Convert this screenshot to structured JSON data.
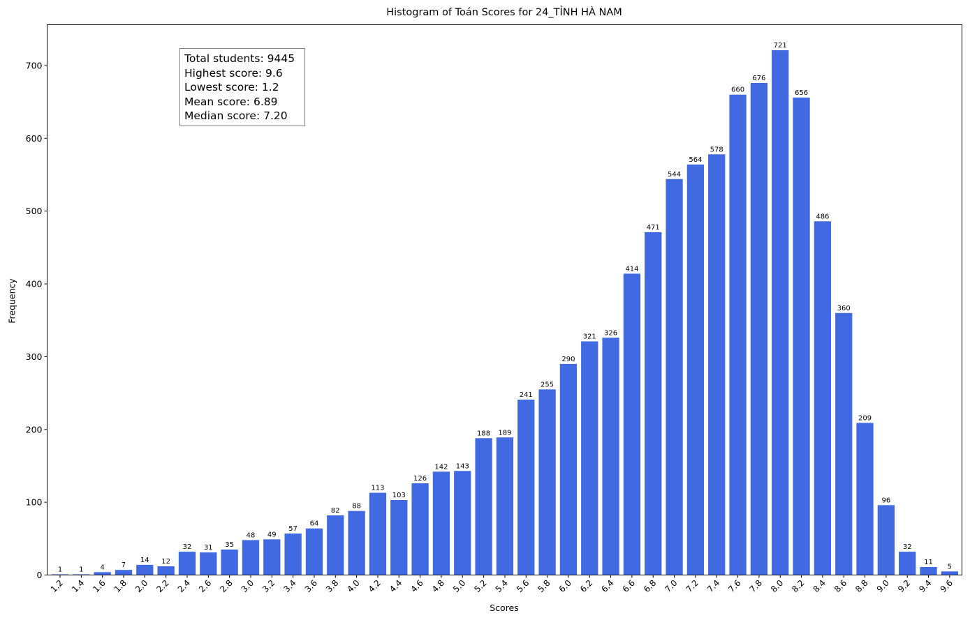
{
  "chart_data": {
    "type": "bar",
    "title": "Histogram of Toán Scores for 24_TỈNH HÀ NAM",
    "xlabel": "Scores",
    "ylabel": "Frequency",
    "ylim": [
      0,
      756
    ],
    "yticks": [
      0,
      100,
      200,
      300,
      400,
      500,
      600,
      700
    ],
    "bar_color": "#4169e1",
    "categories": [
      "1.2",
      "1.4",
      "1.6",
      "1.8",
      "2.0",
      "2.2",
      "2.4",
      "2.6",
      "2.8",
      "3.0",
      "3.2",
      "3.4",
      "3.6",
      "3.8",
      "4.0",
      "4.2",
      "4.4",
      "4.6",
      "4.8",
      "5.0",
      "5.2",
      "5.4",
      "5.6",
      "5.8",
      "6.0",
      "6.2",
      "6.4",
      "6.6",
      "6.8",
      "7.0",
      "7.2",
      "7.4",
      "7.6",
      "7.8",
      "8.0",
      "8.2",
      "8.4",
      "8.6",
      "8.8",
      "9.0",
      "9.2",
      "9.4",
      "9.6"
    ],
    "values": [
      1,
      1,
      4,
      7,
      14,
      12,
      32,
      31,
      35,
      48,
      49,
      57,
      64,
      82,
      88,
      113,
      103,
      126,
      142,
      143,
      188,
      189,
      241,
      255,
      290,
      321,
      326,
      414,
      471,
      544,
      564,
      578,
      660,
      676,
      721,
      656,
      486,
      360,
      209,
      96,
      32,
      11,
      5
    ],
    "annotation": [
      "Total students: 9445",
      "Highest score: 9.6",
      "Lowest score: 1.2",
      "Mean score: 6.89",
      "Median score: 7.20"
    ]
  }
}
